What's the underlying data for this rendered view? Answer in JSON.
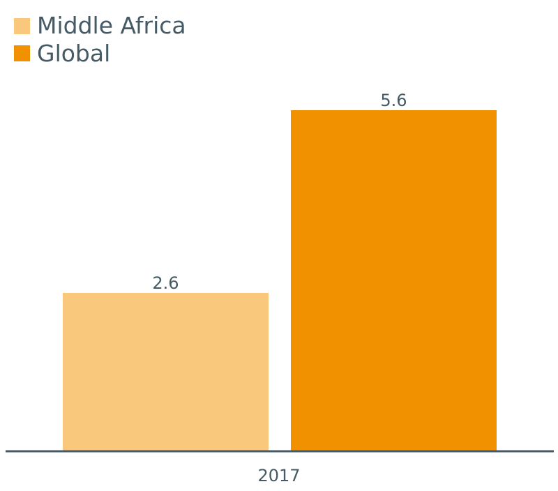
{
  "chart_data": {
    "type": "bar",
    "categories": [
      "2017"
    ],
    "series": [
      {
        "name": "Middle Africa",
        "values": [
          2.6
        ],
        "color": "#FAC87C"
      },
      {
        "name": "Global",
        "values": [
          5.6
        ],
        "color": "#F29100"
      }
    ],
    "value_labels": [
      "2.6",
      "5.6"
    ],
    "ylim": [
      0,
      5.6
    ],
    "grid": false,
    "legend_position": "top-left",
    "text_color": "#455A64",
    "axis_color": "#455A64"
  }
}
